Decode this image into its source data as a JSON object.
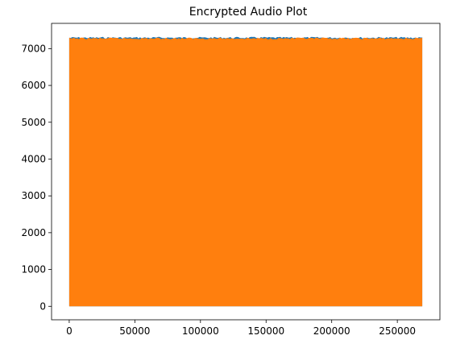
{
  "chart_data": {
    "type": "area",
    "title": "Encrypted Audio Plot",
    "xlabel": "",
    "ylabel": "",
    "xlim": [
      -13450,
      282450
    ],
    "ylim": [
      -366,
      7686
    ],
    "xticks": [
      0,
      50000,
      100000,
      150000,
      200000,
      250000
    ],
    "yticks": [
      0,
      1000,
      2000,
      3000,
      4000,
      5000,
      6000,
      7000
    ],
    "grid": false,
    "legend": "none",
    "series": [
      {
        "color": "#1f77b4",
        "x_range": [
          0,
          269000
        ],
        "y_min": 0,
        "y_max": 7320
      },
      {
        "color": "#ff7f0e",
        "x_range": [
          0,
          269000
        ],
        "y_min": 0,
        "y_max": 7300
      }
    ]
  }
}
